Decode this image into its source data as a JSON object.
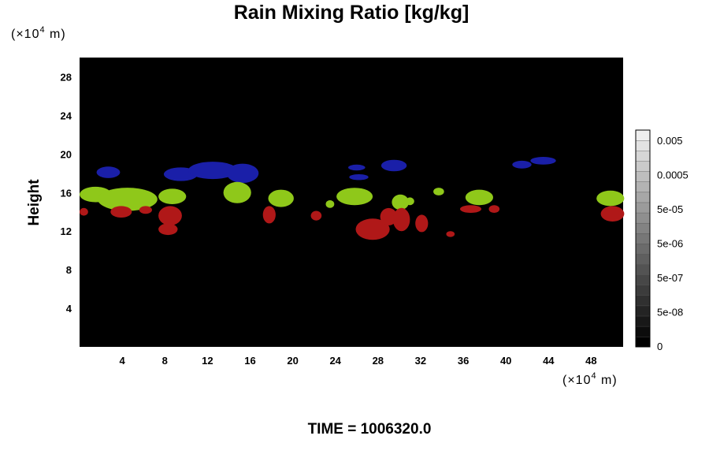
{
  "chart_data": {
    "type": "heatmap",
    "title": "Rain Mixing Ratio [kg/kg]",
    "y_unit_label": "(×10",
    "x_unit_label": "(×10",
    "unit_exponent": "4",
    "unit_suffix": " m)",
    "ylabel": "Height",
    "footer": "TIME = 1006320.0",
    "xlim": [
      0,
      51
    ],
    "ylim": [
      0,
      30
    ],
    "x_ticks": [
      {
        "v": 4,
        "label": "4"
      },
      {
        "v": 8,
        "label": "8"
      },
      {
        "v": 12,
        "label": "12"
      },
      {
        "v": 16,
        "label": "16"
      },
      {
        "v": 20,
        "label": "20"
      },
      {
        "v": 24,
        "label": "24"
      },
      {
        "v": 28,
        "label": "28"
      },
      {
        "v": 32,
        "label": "32"
      },
      {
        "v": 36,
        "label": "36"
      },
      {
        "v": 40,
        "label": "40"
      },
      {
        "v": 44,
        "label": "44"
      },
      {
        "v": 48,
        "label": "48"
      }
    ],
    "y_ticks": [
      {
        "v": 4,
        "label": "4"
      },
      {
        "v": 8,
        "label": "8"
      },
      {
        "v": 12,
        "label": "12"
      },
      {
        "v": 16,
        "label": "16"
      },
      {
        "v": 20,
        "label": "20"
      },
      {
        "v": 24,
        "label": "24"
      },
      {
        "v": 28,
        "label": "28"
      }
    ],
    "colorbar": {
      "labels": [
        "0.005",
        "0.0005",
        "5e-05",
        "5e-06",
        "5e-07",
        "5e-08",
        "0"
      ],
      "levels": 21,
      "min_gray": "#000000",
      "max_gray": "#eeeeee"
    },
    "background_color": "#000000",
    "blobs": [
      {
        "cls": "blue",
        "color": "#1a1fa8",
        "x": 2.7,
        "y": 18.1,
        "rx": 1.1,
        "ry": 0.6
      },
      {
        "cls": "blue",
        "color": "#1a1fa8",
        "x": 9.5,
        "y": 17.9,
        "rx": 1.6,
        "ry": 0.7
      },
      {
        "cls": "blue",
        "color": "#1a1fa8",
        "x": 12.5,
        "y": 18.3,
        "rx": 2.3,
        "ry": 0.9
      },
      {
        "cls": "blue",
        "color": "#1a1fa8",
        "x": 15.3,
        "y": 18.0,
        "rx": 1.5,
        "ry": 1.0
      },
      {
        "cls": "blue",
        "color": "#1a1fa8",
        "x": 26.0,
        "y": 18.6,
        "rx": 0.8,
        "ry": 0.3
      },
      {
        "cls": "blue",
        "color": "#1a1fa8",
        "x": 26.2,
        "y": 17.6,
        "rx": 0.9,
        "ry": 0.3
      },
      {
        "cls": "blue",
        "color": "#1a1fa8",
        "x": 29.5,
        "y": 18.8,
        "rx": 1.2,
        "ry": 0.6
      },
      {
        "cls": "blue",
        "color": "#1a1fa8",
        "x": 41.5,
        "y": 18.9,
        "rx": 0.9,
        "ry": 0.4
      },
      {
        "cls": "blue",
        "color": "#1a1fa8",
        "x": 43.5,
        "y": 19.3,
        "rx": 1.2,
        "ry": 0.4
      },
      {
        "cls": "green",
        "color": "#8fc81a",
        "x": 1.5,
        "y": 15.8,
        "rx": 1.5,
        "ry": 0.8
      },
      {
        "cls": "green",
        "color": "#8fc81a",
        "x": 4.5,
        "y": 15.3,
        "rx": 2.8,
        "ry": 1.2
      },
      {
        "cls": "green",
        "color": "#8fc81a",
        "x": 8.7,
        "y": 15.6,
        "rx": 1.3,
        "ry": 0.8
      },
      {
        "cls": "green",
        "color": "#8fc81a",
        "x": 14.8,
        "y": 16.0,
        "rx": 1.3,
        "ry": 1.1
      },
      {
        "cls": "green",
        "color": "#8fc81a",
        "x": 18.9,
        "y": 15.4,
        "rx": 1.2,
        "ry": 0.9
      },
      {
        "cls": "green",
        "color": "#8fc81a",
        "x": 23.5,
        "y": 14.8,
        "rx": 0.4,
        "ry": 0.4
      },
      {
        "cls": "green",
        "color": "#8fc81a",
        "x": 25.8,
        "y": 15.6,
        "rx": 1.7,
        "ry": 0.9
      },
      {
        "cls": "green",
        "color": "#8fc81a",
        "x": 30.1,
        "y": 15.0,
        "rx": 0.8,
        "ry": 0.8
      },
      {
        "cls": "green",
        "color": "#8fc81a",
        "x": 31.0,
        "y": 15.1,
        "rx": 0.4,
        "ry": 0.4
      },
      {
        "cls": "green",
        "color": "#8fc81a",
        "x": 33.7,
        "y": 16.1,
        "rx": 0.5,
        "ry": 0.4
      },
      {
        "cls": "green",
        "color": "#8fc81a",
        "x": 37.5,
        "y": 15.5,
        "rx": 1.3,
        "ry": 0.8
      },
      {
        "cls": "green",
        "color": "#8fc81a",
        "x": 49.8,
        "y": 15.4,
        "rx": 1.3,
        "ry": 0.8
      },
      {
        "cls": "red",
        "color": "#b01818",
        "x": 0.4,
        "y": 14.0,
        "rx": 0.4,
        "ry": 0.4
      },
      {
        "cls": "red",
        "color": "#b01818",
        "x": 3.9,
        "y": 14.0,
        "rx": 1.0,
        "ry": 0.6
      },
      {
        "cls": "red",
        "color": "#b01818",
        "x": 6.2,
        "y": 14.2,
        "rx": 0.6,
        "ry": 0.4
      },
      {
        "cls": "red",
        "color": "#b01818",
        "x": 8.5,
        "y": 13.6,
        "rx": 1.1,
        "ry": 1.0
      },
      {
        "cls": "red",
        "color": "#b01818",
        "x": 8.3,
        "y": 12.2,
        "rx": 0.9,
        "ry": 0.6
      },
      {
        "cls": "red",
        "color": "#b01818",
        "x": 17.8,
        "y": 13.7,
        "rx": 0.6,
        "ry": 0.9
      },
      {
        "cls": "red",
        "color": "#b01818",
        "x": 22.2,
        "y": 13.6,
        "rx": 0.5,
        "ry": 0.5
      },
      {
        "cls": "red",
        "color": "#b01818",
        "x": 27.5,
        "y": 12.2,
        "rx": 1.6,
        "ry": 1.1
      },
      {
        "cls": "red",
        "color": "#b01818",
        "x": 29.0,
        "y": 13.5,
        "rx": 0.8,
        "ry": 0.9
      },
      {
        "cls": "red",
        "color": "#b01818",
        "x": 30.2,
        "y": 13.2,
        "rx": 0.8,
        "ry": 1.2
      },
      {
        "cls": "red",
        "color": "#b01818",
        "x": 32.1,
        "y": 12.8,
        "rx": 0.6,
        "ry": 0.9
      },
      {
        "cls": "red",
        "color": "#b01818",
        "x": 34.8,
        "y": 11.7,
        "rx": 0.4,
        "ry": 0.3
      },
      {
        "cls": "red",
        "color": "#b01818",
        "x": 36.7,
        "y": 14.3,
        "rx": 1.0,
        "ry": 0.4
      },
      {
        "cls": "red",
        "color": "#b01818",
        "x": 38.9,
        "y": 14.3,
        "rx": 0.5,
        "ry": 0.4
      },
      {
        "cls": "red",
        "color": "#b01818",
        "x": 50.0,
        "y": 13.8,
        "rx": 1.1,
        "ry": 0.8
      }
    ]
  }
}
